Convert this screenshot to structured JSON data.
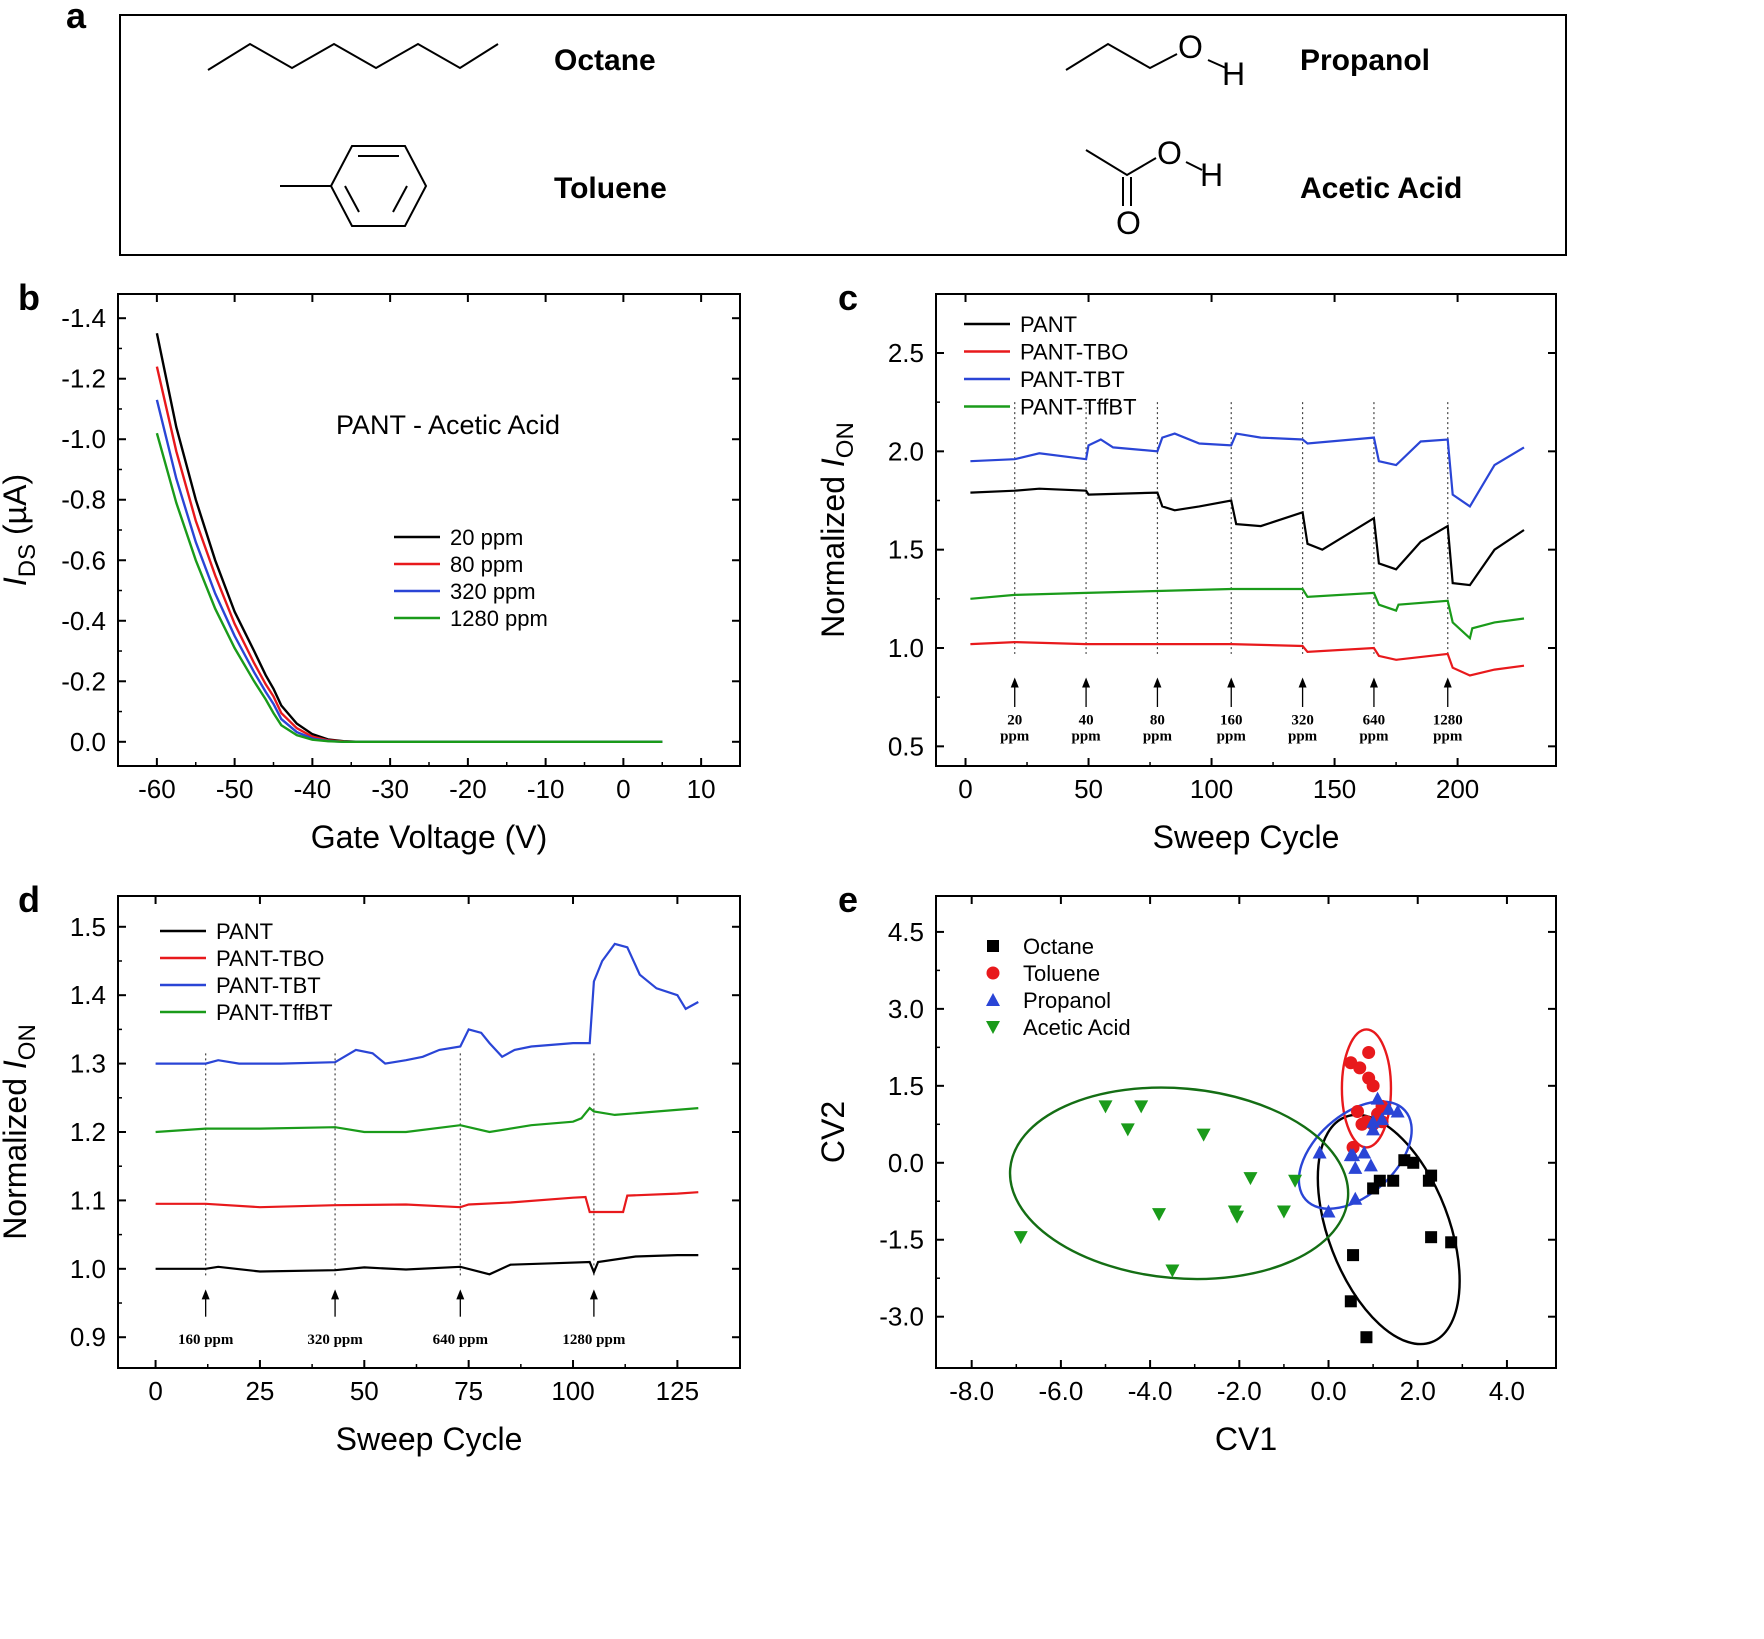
{
  "panel_a": {
    "letter": "a",
    "molecules": [
      {
        "name": "Octane",
        "atoms": []
      },
      {
        "name": "Propanol",
        "atoms": [
          "O",
          "H"
        ]
      },
      {
        "name": "Toluene",
        "atoms": []
      },
      {
        "name": "Acetic Acid",
        "atoms": [
          "O",
          "H",
          "O"
        ]
      }
    ]
  },
  "chart_data": [
    {
      "panel": "b",
      "type": "line",
      "title": "PANT - Acetic Acid",
      "xlabel": "Gate Voltage (V)",
      "ylabel_main": "I",
      "ylabel_sub": "DS",
      "ylabel_unit": " (µA)",
      "xlim": [
        -65,
        15
      ],
      "ylim": [
        0.08,
        -1.48
      ],
      "xticks": [
        -60,
        -50,
        -40,
        -30,
        -20,
        -10,
        0,
        10
      ],
      "xtick_labels": [
        "-60",
        "-50",
        "-40",
        "-30",
        "-20",
        "-10",
        "0",
        "10"
      ],
      "yticks": [
        -1.4,
        -1.2,
        -1.0,
        -0.8,
        -0.6,
        -0.4,
        -0.2,
        0.0
      ],
      "ytick_labels": [
        "-1.4",
        "-1.2",
        "-1.0",
        "-0.8",
        "-0.6",
        "-0.4",
        "-0.2",
        "0.0"
      ],
      "legend": "center",
      "series": [
        {
          "name": "20 ppm",
          "color": "#000000",
          "x": [
            -60,
            -57.5,
            -55,
            -52.5,
            -50,
            -47.5,
            -46,
            -45,
            -44,
            -42,
            -40,
            -38,
            -36,
            -34,
            -30,
            -20,
            -10,
            0,
            5
          ],
          "y": [
            -1.35,
            -1.04,
            -0.8,
            -0.6,
            -0.43,
            -0.3,
            -0.22,
            -0.175,
            -0.12,
            -0.06,
            -0.025,
            -0.008,
            -0.002,
            0,
            0,
            0,
            0,
            0,
            0
          ]
        },
        {
          "name": "80 ppm",
          "color": "#e8191c",
          "x": [
            -60,
            -57.5,
            -55,
            -52.5,
            -50,
            -47.5,
            -46,
            -45,
            -44,
            -42,
            -40,
            -38,
            -36,
            -34,
            -30,
            -20,
            -10,
            0,
            5
          ],
          "y": [
            -1.24,
            -0.96,
            -0.73,
            -0.55,
            -0.39,
            -0.26,
            -0.19,
            -0.15,
            -0.095,
            -0.045,
            -0.017,
            -0.005,
            -0.001,
            0,
            0,
            0,
            0,
            0,
            0
          ]
        },
        {
          "name": "320 ppm",
          "color": "#2a45d6",
          "x": [
            -60,
            -57.5,
            -55,
            -52.5,
            -50,
            -47.5,
            -46,
            -45,
            -44,
            -42,
            -40,
            -38,
            -36,
            -34,
            -30,
            -20,
            -10,
            0,
            5
          ],
          "y": [
            -1.13,
            -0.87,
            -0.66,
            -0.49,
            -0.35,
            -0.23,
            -0.165,
            -0.125,
            -0.075,
            -0.032,
            -0.011,
            -0.003,
            0,
            0,
            0,
            0,
            0,
            0,
            0
          ]
        },
        {
          "name": "1280 ppm",
          "color": "#1a9b1a",
          "x": [
            -60,
            -57.5,
            -55,
            -52.5,
            -50,
            -47.5,
            -46,
            -45,
            -44,
            -42,
            -40,
            -38,
            -36,
            -34,
            -30,
            -20,
            -10,
            0,
            5
          ],
          "y": [
            -1.02,
            -0.79,
            -0.6,
            -0.44,
            -0.31,
            -0.2,
            -0.14,
            -0.095,
            -0.055,
            -0.022,
            -0.007,
            -0.002,
            0,
            0,
            0,
            0,
            0,
            0,
            0
          ]
        }
      ]
    },
    {
      "panel": "c",
      "type": "line",
      "xlabel": "Sweep Cycle",
      "ylabel_main": "Normalized I",
      "ylabel_sub": "ON",
      "xlim": [
        -12,
        240
      ],
      "ylim": [
        0.4,
        2.8
      ],
      "xticks": [
        0,
        50,
        100,
        150,
        200
      ],
      "xtick_labels": [
        "0",
        "50",
        "100",
        "150",
        "200"
      ],
      "yticks": [
        0.5,
        1.0,
        1.5,
        2.0,
        2.5
      ],
      "ytick_labels": [
        "0.5",
        "1.0",
        "1.5",
        "2.0",
        "2.5"
      ],
      "legend": "top-left",
      "injections": [
        {
          "x": 20,
          "label": "20",
          "unit": "ppm"
        },
        {
          "x": 49,
          "label": "40",
          "unit": "ppm"
        },
        {
          "x": 78,
          "label": "80",
          "unit": "ppm"
        },
        {
          "x": 108,
          "label": "160",
          "unit": "ppm"
        },
        {
          "x": 137,
          "label": "320",
          "unit": "ppm"
        },
        {
          "x": 166,
          "label": "640",
          "unit": "ppm"
        },
        {
          "x": 196,
          "label": "1280",
          "unit": "ppm"
        }
      ],
      "series": [
        {
          "name": "PANT",
          "color": "#000000",
          "x": [
            2,
            20,
            30,
            49,
            50,
            78,
            80,
            85,
            95,
            108,
            110,
            120,
            137,
            139,
            145,
            166,
            168,
            175,
            185,
            196,
            198,
            205,
            215,
            227
          ],
          "y": [
            1.79,
            1.8,
            1.81,
            1.8,
            1.78,
            1.79,
            1.72,
            1.7,
            1.72,
            1.75,
            1.63,
            1.62,
            1.69,
            1.53,
            1.5,
            1.66,
            1.43,
            1.4,
            1.54,
            1.62,
            1.33,
            1.32,
            1.5,
            1.6
          ]
        },
        {
          "name": "PANT-TBO",
          "color": "#e8191c",
          "x": [
            2,
            20,
            49,
            78,
            108,
            137,
            139,
            166,
            168,
            175,
            196,
            198,
            205,
            215,
            227
          ],
          "y": [
            1.02,
            1.03,
            1.02,
            1.02,
            1.02,
            1.01,
            0.98,
            1.0,
            0.96,
            0.94,
            0.97,
            0.9,
            0.86,
            0.89,
            0.91
          ]
        },
        {
          "name": "PANT-TBT",
          "color": "#2a45d6",
          "x": [
            2,
            20,
            30,
            49,
            50,
            55,
            60,
            78,
            80,
            85,
            95,
            108,
            110,
            120,
            137,
            139,
            166,
            168,
            175,
            185,
            196,
            198,
            205,
            215,
            227
          ],
          "y": [
            1.95,
            1.96,
            1.99,
            1.96,
            2.03,
            2.06,
            2.02,
            2.0,
            2.07,
            2.09,
            2.04,
            2.03,
            2.09,
            2.07,
            2.06,
            2.04,
            2.07,
            1.95,
            1.93,
            2.05,
            2.06,
            1.78,
            1.72,
            1.93,
            2.02
          ]
        },
        {
          "name": "PANT-TffBT",
          "color": "#1a9b1a",
          "x": [
            2,
            20,
            49,
            78,
            108,
            137,
            139,
            166,
            168,
            175,
            176,
            196,
            198,
            205,
            206,
            215,
            227
          ],
          "y": [
            1.25,
            1.27,
            1.28,
            1.29,
            1.3,
            1.3,
            1.26,
            1.28,
            1.22,
            1.19,
            1.22,
            1.24,
            1.13,
            1.05,
            1.1,
            1.13,
            1.15
          ]
        }
      ]
    },
    {
      "panel": "d",
      "type": "line",
      "xlabel": "Sweep Cycle",
      "ylabel_main": "Normalized I",
      "ylabel_sub": "ON",
      "xlim": [
        -9,
        140
      ],
      "ylim": [
        0.855,
        1.545
      ],
      "xticks": [
        0,
        25,
        50,
        75,
        100,
        125
      ],
      "xtick_labels": [
        "0",
        "25",
        "50",
        "75",
        "100",
        "125"
      ],
      "yticks": [
        0.9,
        1.0,
        1.1,
        1.2,
        1.3,
        1.4,
        1.5
      ],
      "ytick_labels": [
        "0.9",
        "1.0",
        "1.1",
        "1.2",
        "1.3",
        "1.4",
        "1.5"
      ],
      "legend": "top-left",
      "injections": [
        {
          "x": 12,
          "label": "160 ppm"
        },
        {
          "x": 43,
          "label": "320 ppm"
        },
        {
          "x": 73,
          "label": "640 ppm"
        },
        {
          "x": 105,
          "label": "1280 ppm"
        }
      ],
      "series": [
        {
          "name": "PANT",
          "color": "#000000",
          "x": [
            0,
            12,
            15,
            25,
            43,
            50,
            60,
            73,
            80,
            85,
            95,
            104,
            105,
            106,
            115,
            125,
            130
          ],
          "y": [
            1.0,
            1.0,
            1.003,
            0.996,
            0.998,
            1.002,
            0.999,
            1.003,
            0.992,
            1.006,
            1.008,
            1.01,
            0.995,
            1.01,
            1.018,
            1.02,
            1.02
          ]
        },
        {
          "name": "PANT-TBO",
          "color": "#e8191c",
          "x": [
            0,
            12,
            25,
            43,
            60,
            73,
            75,
            85,
            100,
            103,
            104,
            112,
            113,
            125,
            130
          ],
          "y": [
            1.095,
            1.095,
            1.09,
            1.093,
            1.094,
            1.09,
            1.094,
            1.097,
            1.104,
            1.105,
            1.083,
            1.083,
            1.107,
            1.11,
            1.112
          ]
        },
        {
          "name": "PANT-TBT",
          "color": "#2a45d6",
          "x": [
            0,
            12,
            15,
            20,
            30,
            43,
            48,
            52,
            55,
            60,
            64,
            68,
            73,
            75,
            78,
            80,
            83,
            86,
            90,
            100,
            104,
            105,
            107,
            110,
            113,
            116,
            120,
            125,
            127,
            130
          ],
          "y": [
            1.3,
            1.3,
            1.305,
            1.3,
            1.3,
            1.302,
            1.32,
            1.315,
            1.3,
            1.305,
            1.31,
            1.32,
            1.325,
            1.35,
            1.345,
            1.33,
            1.31,
            1.32,
            1.325,
            1.33,
            1.33,
            1.42,
            1.45,
            1.475,
            1.47,
            1.43,
            1.41,
            1.4,
            1.38,
            1.39
          ]
        },
        {
          "name": "PANT-TffBT",
          "color": "#1a9b1a",
          "x": [
            0,
            12,
            25,
            43,
            50,
            60,
            73,
            80,
            90,
            100,
            102,
            104,
            105,
            110,
            120,
            130
          ],
          "y": [
            1.2,
            1.205,
            1.205,
            1.207,
            1.2,
            1.2,
            1.21,
            1.2,
            1.21,
            1.215,
            1.22,
            1.235,
            1.23,
            1.225,
            1.23,
            1.235
          ]
        }
      ]
    },
    {
      "panel": "e",
      "type": "scatter",
      "xlabel": "CV1",
      "ylabel": "CV2",
      "xlim": [
        -8.8,
        5.1
      ],
      "ylim": [
        -4.0,
        5.2
      ],
      "xticks": [
        -8,
        -6,
        -4,
        -2,
        0,
        2,
        4
      ],
      "xtick_labels": [
        "-8.0",
        "-6.0",
        "-4.0",
        "-2.0",
        "0.0",
        "2.0",
        "4.0"
      ],
      "yticks": [
        -3,
        -1.5,
        0,
        1.5,
        3,
        4.5
      ],
      "ytick_labels": [
        "-3.0",
        "-1.5",
        "0.0",
        "1.5",
        "3.0",
        "4.5"
      ],
      "legend": "top-left",
      "series": [
        {
          "name": "Octane",
          "color": "#000000",
          "marker": "square",
          "x": [
            0.55,
            0.5,
            0.85,
            1.15,
            1.0,
            1.45,
            1.7,
            1.9,
            2.3,
            2.25,
            2.3,
            2.75
          ],
          "y": [
            -1.8,
            -2.7,
            -3.4,
            -0.35,
            -0.5,
            -0.35,
            0.05,
            0.0,
            -0.25,
            -0.35,
            -1.45,
            -1.55
          ],
          "ellipse": {
            "cx": 1.35,
            "cy": -1.3,
            "rx": 1.35,
            "ry": 2.35,
            "angle": -21
          }
        },
        {
          "name": "Toluene",
          "color": "#e8191c",
          "marker": "circle",
          "x": [
            0.5,
            0.7,
            0.9,
            1.0,
            0.75,
            1.2,
            0.9,
            0.55,
            1.1,
            0.65,
            1.0,
            1.2,
            0.85
          ],
          "y": [
            1.95,
            1.85,
            2.15,
            1.5,
            0.75,
            0.8,
            1.65,
            0.3,
            0.95,
            1.0,
            0.75,
            1.1,
            0.8
          ],
          "ellipse": {
            "cx": 0.85,
            "cy": 1.45,
            "rx": 0.55,
            "ry": 1.15,
            "angle": 0
          }
        },
        {
          "name": "Propanol",
          "color": "#2a45d6",
          "marker": "triangle-up",
          "x": [
            -0.2,
            0.0,
            0.5,
            0.6,
            0.8,
            1.0,
            1.1,
            1.2,
            1.35,
            1.55,
            0.6,
            0.55,
            1.0,
            0.95
          ],
          "y": [
            0.2,
            -0.95,
            0.15,
            -0.7,
            0.2,
            0.8,
            1.25,
            0.85,
            1.05,
            1.0,
            -0.1,
            0.15,
            0.65,
            -0.05
          ],
          "ellipse": {
            "cx": 0.6,
            "cy": 0.15,
            "rx": 0.9,
            "ry": 1.3,
            "angle": 48
          }
        },
        {
          "name": "Acetic Acid",
          "color": "#1a9b1a",
          "marker": "triangle-down",
          "x": [
            -6.9,
            -5.0,
            -4.2,
            -4.5,
            -3.8,
            -3.5,
            -2.8,
            -2.1,
            -2.05,
            -1.75,
            -1.0,
            -0.75
          ],
          "y": [
            -1.45,
            1.1,
            1.1,
            0.65,
            -1.0,
            -2.1,
            0.55,
            -0.95,
            -1.05,
            -0.3,
            -0.95,
            -0.35
          ],
          "ellipse": {
            "cx": -3.35,
            "cy": -0.4,
            "rx": 3.8,
            "ry": 1.85,
            "angle": 5
          }
        }
      ]
    }
  ]
}
